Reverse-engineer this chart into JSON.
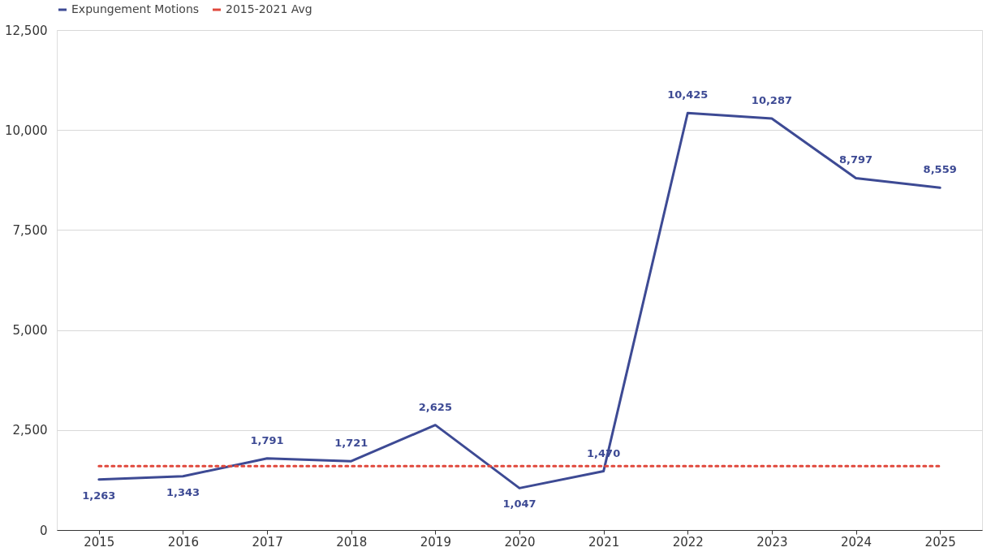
{
  "chart_data": {
    "type": "line",
    "categories": [
      "2015",
      "2016",
      "2017",
      "2018",
      "2019",
      "2020",
      "2021",
      "2022",
      "2023",
      "2024",
      "2025"
    ],
    "series": [
      {
        "name": "Expungement Motions",
        "color": "#3d4a94",
        "line_style": "solid",
        "value_labels": [
          "1,263",
          "1,343",
          "1,791",
          "1,721",
          "2,625",
          "1,047",
          "1,470",
          "10,425",
          "10,287",
          "8,797",
          "8,559"
        ],
        "values": [
          1263,
          1343,
          1791,
          1721,
          2625,
          1047,
          1470,
          10425,
          10287,
          8797,
          8559
        ]
      },
      {
        "name": "2015-2021 Avg",
        "color": "#e0483c",
        "line_style": "dotted",
        "values": [
          1600,
          1600,
          1600,
          1600,
          1600,
          1600,
          1600,
          1600,
          1600,
          1600,
          1600
        ]
      }
    ],
    "ylim": [
      0,
      12500
    ],
    "yticks": [
      0,
      {
        "value": 2500,
        "label": "2,500"
      },
      {
        "value": 5000,
        "label": "5,000"
      },
      {
        "value": 7500,
        "label": "7,500"
      },
      {
        "value": 10000,
        "label": "10,000"
      },
      {
        "value": 12500,
        "label": "12,500"
      }
    ],
    "grid": "y",
    "legend": "top",
    "marker": "none"
  }
}
